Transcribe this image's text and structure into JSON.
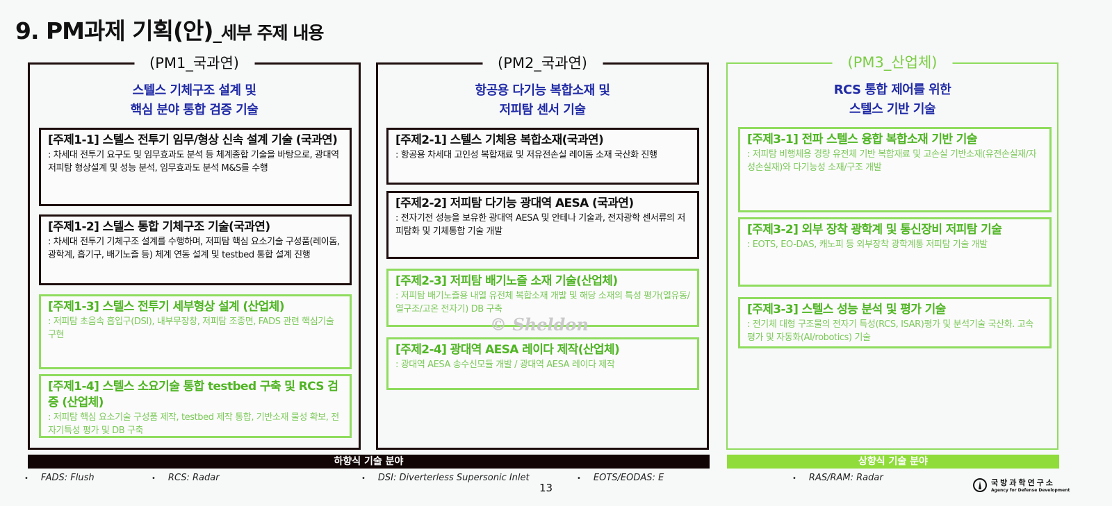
{
  "title": {
    "main": "9. PM과제 기획(안)",
    "sub": "_세부 주제 내용"
  },
  "columns": [
    {
      "label": "(PM1_국과연)",
      "subtitle": [
        "스텔스 기체구조 설계 및",
        "핵심 분야 통합 검증 기술"
      ],
      "topics": [
        {
          "heading": "[주제1-1] 스텔스 전투기 임무/형상 신속 설계 기술 (국과연)",
          "body": ": 차세대 전투기 요구도 및 임무효과도 분석 등 체계종합 기술을 바탕으로, 광대역 저피탐 형상설계 및 성능 분석, 임무효과도 분석 M&S를 수행"
        },
        {
          "heading": "[주제1-2] 스텔스 통합 기체구조 기술(국과연)",
          "body": ": 차세대 전투기 기체구조 설계를 수행하며, 저피탐 핵심 요소기술 구성품(레이돔, 광학계, 흡기구, 배기노즐 등) 체계 연동 설계 및 testbed 통합 설계 진행"
        },
        {
          "heading": "[주제1-3] 스텔스 전투기 세부형상 설계 (산업체)",
          "body": ": 저피탐 초음속 흡입구(DSI), 내부무장창, 저피탐 조종면, FADS 관련 핵심기술 구현"
        },
        {
          "heading": "[주제1-4] 스텔스 소요기술 통합 testbed 구축 및 RCS 검증 (산업체)",
          "body": ": 저피탐 핵심 요소기술 구성품 제작, testbed 제작 통합, 기반소재 물성 확보, 전자기특성 평가 및 DB 구축"
        }
      ]
    },
    {
      "label": "(PM2_국과연)",
      "subtitle": [
        "항공용 다기능 복합소재 및",
        "저피탐 센서 기술"
      ],
      "topics": [
        {
          "heading": "[주제2-1] 스텔스 기체용 복합소재(국과연)",
          "body": ": 항공용 차세대 고인성 복합재료 및 저유전손실 레이돔 소재 국산화 진행"
        },
        {
          "heading": "[주제2-2] 저피탐 다기능 광대역 AESA (국과연)",
          "body": ": 전자기전 성능을 보유한 광대역 AESA 및 안테나 기술과, 전자광학 센서류의 저피탐화 및 기체통합 기술 개발"
        },
        {
          "heading": "[주제2-3] 저피탐 배기노즐 소재 기술(산업체)",
          "body": ": 저피탐 배기노즐용 내열 유전체 복합소재 개발 및 해당 소재의 특성 평가(열유동/열구조/고온 전자기) DB 구축"
        },
        {
          "heading": "[주제2-4] 광대역 AESA 레이다 제작(산업체)",
          "body": ": 광대역 AESA 송수신모듈 개발 / 광대역 AESA 레이다 제작"
        }
      ]
    },
    {
      "label": "(PM3_산업체)",
      "subtitle": [
        "RCS 통합 제어를 위한",
        "스텔스  기반 기술"
      ],
      "topics": [
        {
          "heading": "[주제3-1] 전파 스텔스 융합 복합소재 기반 기술",
          "body": ": 저피탐 비행체용 경량 유전체 기반 복합재료 및 고손실 기반소재(유전손실재/자성손실재)와 다기능성 소재/구조 개발"
        },
        {
          "heading": "[주제3-2] 외부 장착 광학계 및 통신장비 저피탐 기술",
          "body": ": EOTS, EO-DAS, 캐노피 등 외부장착 광학계통 저피탐 기술 개발"
        },
        {
          "heading": "[주제3-3] 스텔스 성능 분석 및 평가 기술",
          "body": ": 전기체 대형 구조물의 전자기 특성(RCS, ISAR)평가 및 분석기술 국산화. 고속 평가 및 자동화(AI/robotics) 기술"
        }
      ]
    }
  ],
  "bars": {
    "topdown": "하향식 기술 분야",
    "bottomup": "상향식 기술 분야"
  },
  "notes": [
    "FADS: Flush",
    "RCS: Radar",
    "DSI: Diverterless Supersonic Inlet",
    "EOTS/EODAS: E",
    "RAS/RAM: Radar"
  ],
  "page_number": "13",
  "watermark": "© Sheldon",
  "logo": {
    "kr": "국방과학연구소",
    "en": "Agency for Defense Development"
  },
  "colors": {
    "dark": "#1e0e0e",
    "green": "#8fdc5e",
    "blue": "#1f2aa6"
  }
}
